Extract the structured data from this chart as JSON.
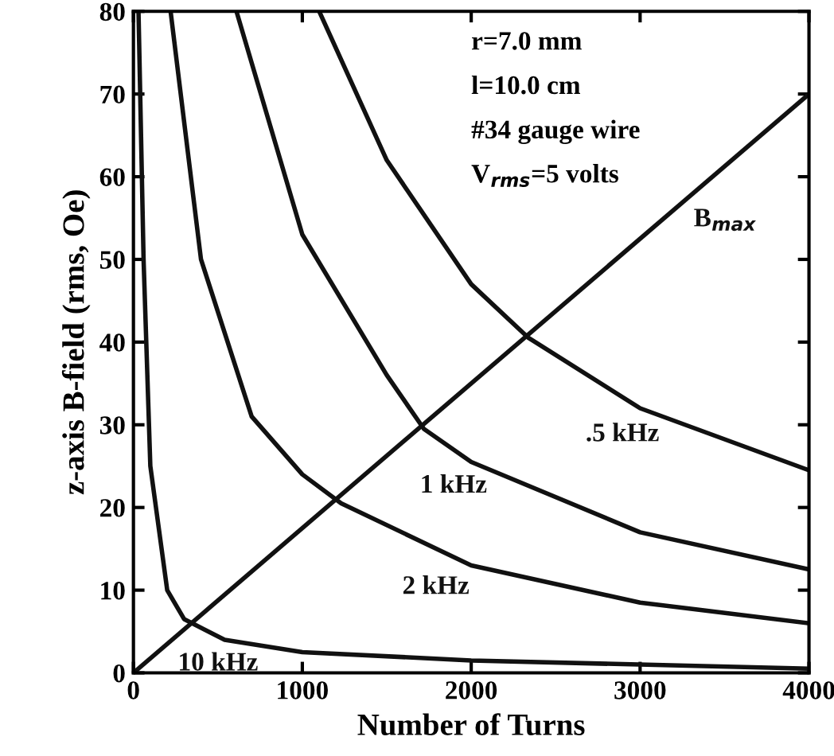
{
  "chart_data": {
    "type": "line",
    "xlabel": "Number of Turns",
    "ylabel": "z-axis B-field (rms, Oe)",
    "xlim": [
      0,
      4000
    ],
    "ylim": [
      0,
      80
    ],
    "xticks": [
      0,
      1000,
      2000,
      3000,
      4000
    ],
    "yticks": [
      0,
      10,
      20,
      30,
      40,
      50,
      60,
      70,
      80
    ],
    "grid": false,
    "marker": "none",
    "line_style": "solid",
    "series": [
      {
        "name": ".5 kHz",
        "color": "#111111",
        "x": [
          1100,
          1500,
          2000,
          2340,
          3000,
          4000
        ],
        "values": [
          80,
          62,
          47,
          40.5,
          32,
          24.5
        ]
      },
      {
        "name": "1 kHz",
        "color": "#111111",
        "x": [
          610,
          1000,
          1500,
          1720,
          2000,
          3000,
          4000
        ],
        "values": [
          80,
          53,
          36,
          29.5,
          25.5,
          17,
          12.5
        ]
      },
      {
        "name": "2 kHz",
        "color": "#111111",
        "x": [
          220,
          400,
          700,
          1000,
          1230,
          2000,
          3000,
          4000
        ],
        "values": [
          80,
          50,
          31,
          24,
          20.5,
          13,
          8.5,
          6
        ]
      },
      {
        "name": "10 kHz",
        "color": "#111111",
        "x": [
          30,
          60,
          100,
          200,
          300,
          540,
          1000,
          2000,
          4000
        ],
        "values": [
          80,
          50,
          25,
          10,
          6.5,
          4,
          2.5,
          1.5,
          0.5
        ]
      },
      {
        "name": "B$_{max}$",
        "color": "#111111",
        "x": [
          0,
          4000
        ],
        "values": [
          0,
          70
        ]
      }
    ],
    "annotations": [
      "r=7.0 mm",
      "l=10.0 cm",
      "#34 gauge wire",
      "V$_{rms}$=5 volts"
    ]
  }
}
